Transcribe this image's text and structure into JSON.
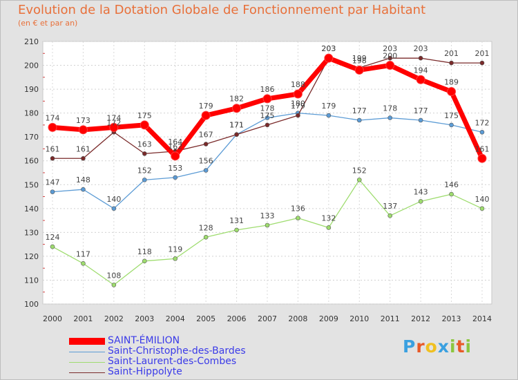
{
  "title": "Evolution de la Dotation Globale de Fonctionnement par Habitant",
  "subtitle": "(en € et par an)",
  "logo": {
    "letters": [
      "P",
      "r",
      "o",
      "x",
      "i",
      "t",
      "i"
    ],
    "colors": [
      "#3aa0e0",
      "#e85a28",
      "#f0c020",
      "#3aa0e0",
      "#8cc63f",
      "#e85a28",
      "#8cc63f"
    ]
  },
  "chart_data": {
    "type": "line",
    "title": "Evolution de la Dotation Globale de Fonctionnement par Habitant",
    "xlabel": "",
    "ylabel": "(en € et par an)",
    "ylim": [
      100,
      210
    ],
    "yticks": [
      100,
      110,
      120,
      130,
      140,
      150,
      160,
      170,
      180,
      190,
      200,
      210
    ],
    "grid": true,
    "categories": [
      "2000",
      "2001",
      "2002",
      "2003",
      "2004",
      "2005",
      "2006",
      "2007",
      "2008",
      "2009",
      "2010",
      "2011",
      "2012",
      "2013",
      "2014"
    ],
    "series": [
      {
        "name": "SAINT-ÉMILION",
        "color": "#ff0000",
        "values": [
          174,
          173,
          174,
          175,
          162,
          179,
          182,
          186,
          188,
          203,
          198,
          200,
          194,
          189,
          161
        ]
      },
      {
        "name": "Saint-Christophe-des-Bardes",
        "color": "#5b9bd5",
        "values": [
          147,
          148,
          140,
          152,
          153,
          156,
          171,
          178,
          180,
          179,
          177,
          178,
          177,
          175,
          172
        ]
      },
      {
        "name": "Saint-Laurent-des-Combes",
        "color": "#9edc6e",
        "values": [
          124,
          117,
          108,
          118,
          119,
          128,
          131,
          133,
          136,
          132,
          152,
          137,
          143,
          146,
          140
        ]
      },
      {
        "name": "Saint-Hippolyte",
        "color": "#7a2a2a",
        "values": [
          161,
          161,
          172,
          163,
          164,
          167,
          171,
          175,
          179,
          203,
          199,
          203,
          203,
          201,
          201
        ]
      }
    ]
  }
}
